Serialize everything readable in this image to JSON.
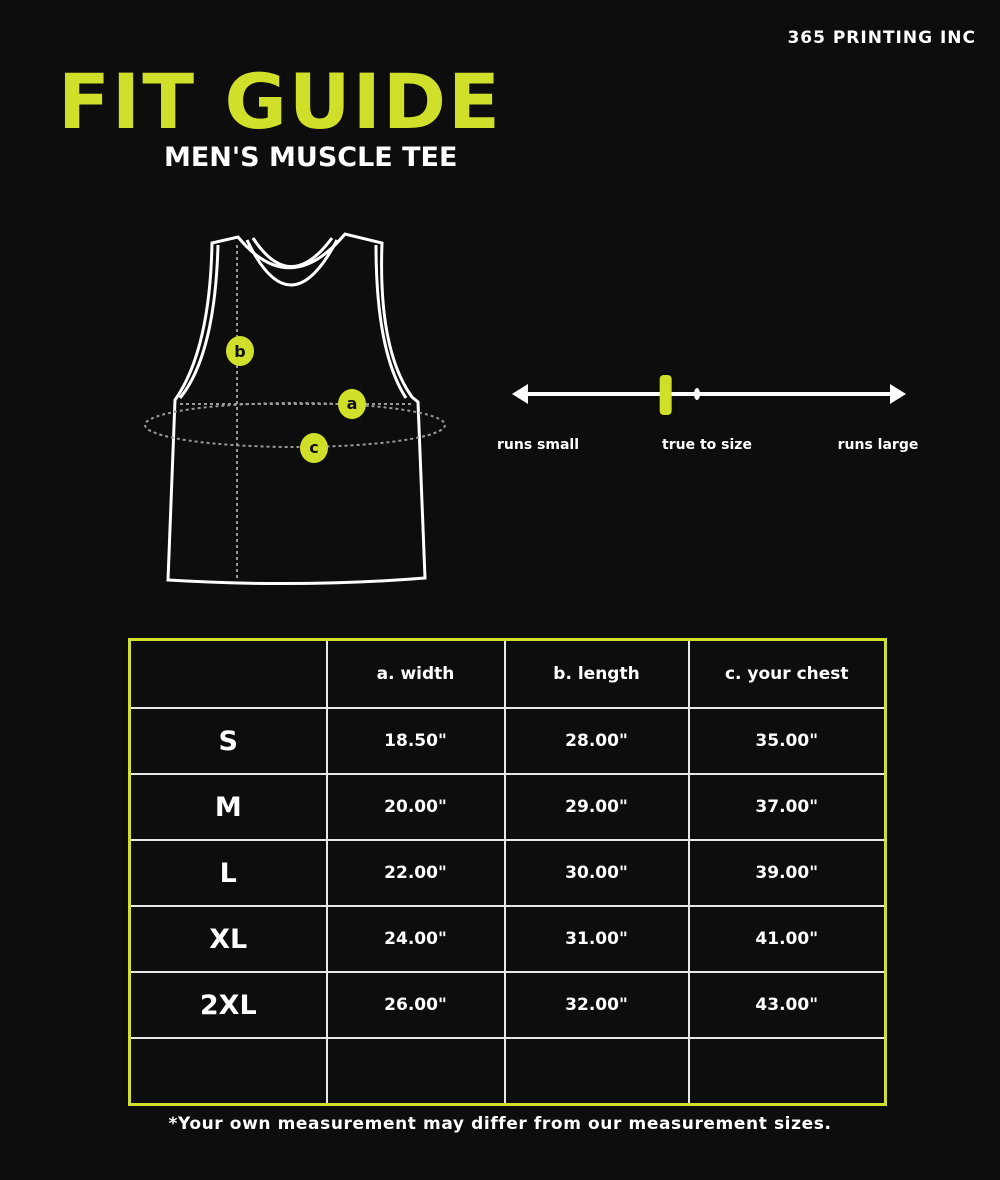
{
  "brand": "365 PRINTING INC",
  "title": "FIT GUIDE",
  "subtitle": "MEN'S MUSCLE TEE",
  "diagram": {
    "markers": [
      "a",
      "b",
      "c"
    ]
  },
  "fit_scale": {
    "left_label": "runs small",
    "center_label": "true to size",
    "right_label": "runs large",
    "position": 0.39,
    "accent": "#cfdf2a"
  },
  "table": {
    "headers": [
      "",
      "a. width",
      "b. length",
      "c. your chest"
    ],
    "rows": [
      [
        "S",
        "18.50\"",
        "28.00\"",
        "35.00\""
      ],
      [
        "M",
        "20.00\"",
        "29.00\"",
        "37.00\""
      ],
      [
        "L",
        "22.00\"",
        "30.00\"",
        "39.00\""
      ],
      [
        "XL",
        "24.00\"",
        "31.00\"",
        "41.00\""
      ],
      [
        "2XL",
        "26.00\"",
        "32.00\"",
        "43.00\""
      ],
      [
        "",
        "",
        "",
        ""
      ]
    ]
  },
  "note": "*Your own measurement may differ from our measurement sizes."
}
